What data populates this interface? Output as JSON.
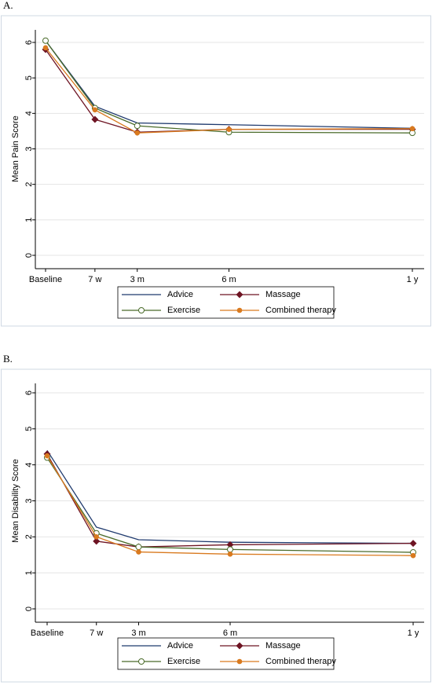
{
  "chart_data": [
    {
      "type": "line",
      "panel_label": "A.",
      "y_label": "Mean Pain Score",
      "x": [
        0,
        7,
        13,
        26,
        52
      ],
      "xlim": [
        0,
        52
      ],
      "xticks": [
        {
          "value": 0,
          "label": "Baseline"
        },
        {
          "value": 7,
          "label": "7 w"
        },
        {
          "value": 13,
          "label": "3 m"
        },
        {
          "value": 26,
          "label": "6 m"
        },
        {
          "value": 52,
          "label": "1 y"
        }
      ],
      "ylim": [
        0,
        6
      ],
      "yticks": [
        0,
        1,
        2,
        3,
        4,
        5,
        6
      ],
      "grid": true,
      "legend": "bottom",
      "series": [
        {
          "name": "Advice",
          "color": "#1f3a6e",
          "marker": "none",
          "values": [
            6.05,
            4.2,
            3.73,
            3.68,
            3.58
          ]
        },
        {
          "name": "Massage",
          "color": "#6e1423",
          "marker": "diamond",
          "values": [
            5.8,
            3.83,
            3.47,
            3.55,
            3.55
          ]
        },
        {
          "name": "Exercise",
          "color": "#4a6b2a",
          "marker": "circle-open",
          "values": [
            6.05,
            4.15,
            3.65,
            3.47,
            3.45
          ]
        },
        {
          "name": "Combined therapy",
          "color": "#d97a1f",
          "marker": "circle",
          "values": [
            5.85,
            4.1,
            3.45,
            3.55,
            3.57
          ]
        }
      ]
    },
    {
      "type": "line",
      "panel_label": "B.",
      "y_label": "Mean Disability Score",
      "x": [
        0,
        7,
        13,
        26,
        52
      ],
      "xlim": [
        0,
        52
      ],
      "xticks": [
        {
          "value": 0,
          "label": "Baseline"
        },
        {
          "value": 7,
          "label": "7 w"
        },
        {
          "value": 13,
          "label": "3 m"
        },
        {
          "value": 26,
          "label": "6 m"
        },
        {
          "value": 52,
          "label": "1 y"
        }
      ],
      "ylim": [
        0,
        6
      ],
      "yticks": [
        0,
        1,
        2,
        3,
        4,
        5,
        6
      ],
      "grid": true,
      "legend": "bottom",
      "series": [
        {
          "name": "Advice",
          "color": "#1f3a6e",
          "marker": "none",
          "values": [
            4.4,
            2.27,
            1.92,
            1.85,
            1.82
          ]
        },
        {
          "name": "Massage",
          "color": "#6e1423",
          "marker": "diamond",
          "values": [
            4.3,
            1.88,
            1.72,
            1.78,
            1.82
          ]
        },
        {
          "name": "Exercise",
          "color": "#4a6b2a",
          "marker": "circle-open",
          "values": [
            4.2,
            2.1,
            1.72,
            1.65,
            1.57
          ]
        },
        {
          "name": "Combined therapy",
          "color": "#d97a1f",
          "marker": "circle",
          "values": [
            4.25,
            2.0,
            1.58,
            1.52,
            1.48
          ]
        }
      ]
    }
  ]
}
